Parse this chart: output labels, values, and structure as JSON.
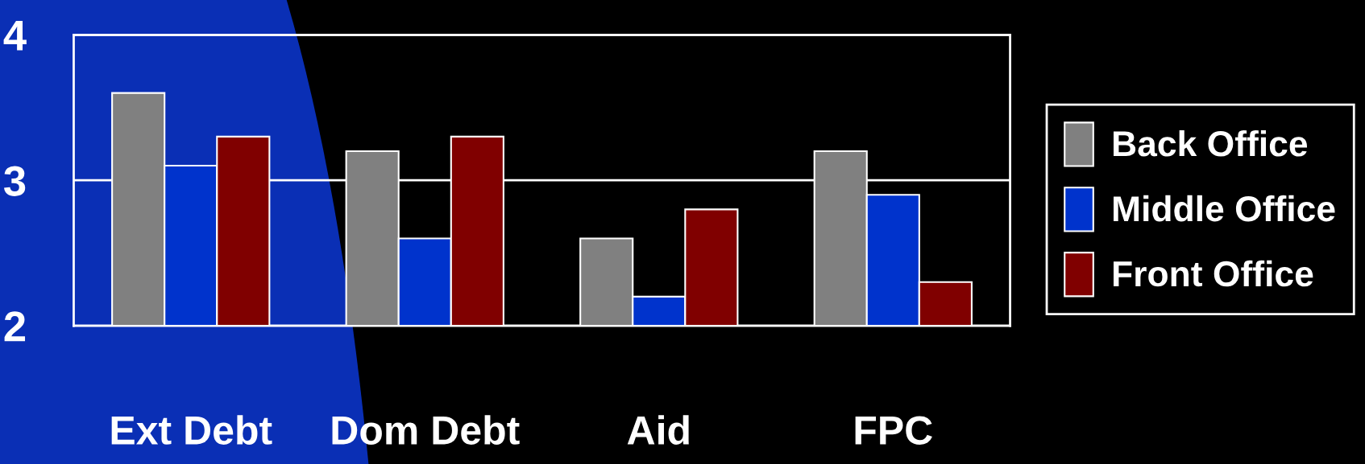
{
  "chart_data": {
    "type": "bar",
    "categories": [
      "Ext Debt",
      "Dom Debt",
      "Aid",
      "FPC"
    ],
    "series": [
      {
        "name": "Back Office",
        "color": "#808080",
        "values": [
          3.6,
          3.2,
          2.6,
          3.2
        ]
      },
      {
        "name": "Middle Office",
        "color": "#0033cc",
        "values": [
          3.1,
          2.6,
          2.2,
          2.9
        ]
      },
      {
        "name": "Front Office",
        "color": "#800000",
        "values": [
          3.3,
          3.3,
          2.8,
          2.3
        ]
      }
    ],
    "ylim": [
      2,
      4
    ],
    "yticks": [
      2,
      3,
      4
    ],
    "grid": "y",
    "legend": "right"
  }
}
